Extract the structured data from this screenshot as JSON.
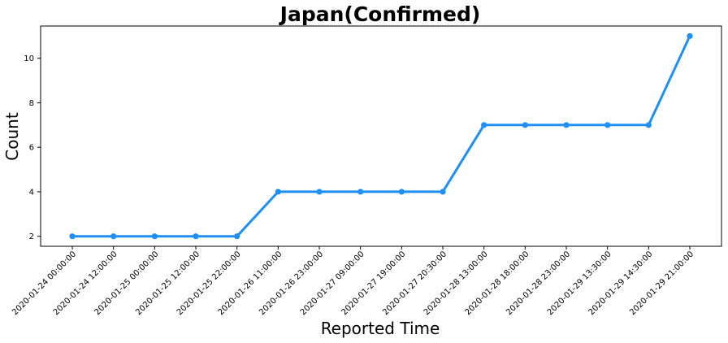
{
  "chart_data": {
    "type": "line",
    "title": "Japan(Confirmed)",
    "xlabel": "Reported Time",
    "ylabel": "Count",
    "categories": [
      "2020-01-24 00:00:00",
      "2020-01-24 12:00:00",
      "2020-01-25 00:00:00",
      "2020-01-25 12:00:00",
      "2020-01-25 22:00:00",
      "2020-01-26 11:00:00",
      "2020-01-26 23:00:00",
      "2020-01-27 09:00:00",
      "2020-01-27 19:00:00",
      "2020-01-27 20:30:00",
      "2020-01-28 13:00:00",
      "2020-01-28 18:00:00",
      "2020-01-28 23:00:00",
      "2020-01-29 13:30:00",
      "2020-01-29 14:30:00",
      "2020-01-29 21:00:00"
    ],
    "series": [
      {
        "values": [
          2,
          2,
          2,
          2,
          2,
          4,
          4,
          4,
          4,
          4,
          7,
          7,
          7,
          7,
          7,
          11
        ]
      }
    ],
    "y_ticks": [
      2,
      4,
      6,
      8,
      10
    ],
    "ylim": [
      1.55,
      11.45
    ],
    "grid": false,
    "legend": "none",
    "line_color": "#1f8ff5",
    "marker": "circle"
  }
}
